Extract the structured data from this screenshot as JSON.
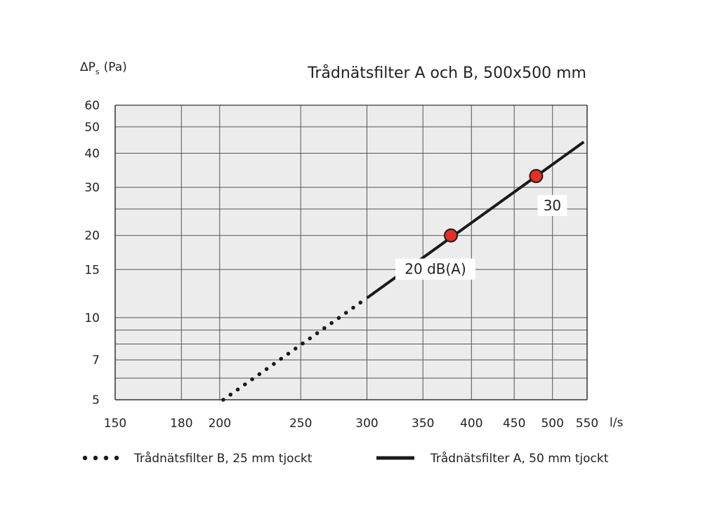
{
  "chart_data": {
    "type": "line",
    "title": "Trådnätsfilter A och B, 500x500 mm",
    "ylabel": {
      "main": "ΔP",
      "sub": "s",
      "unit": "(Pa)"
    },
    "xlabel": "l/s",
    "x_scale": "log",
    "y_scale": "log",
    "xlim": [
      150,
      550
    ],
    "ylim": [
      5,
      60
    ],
    "x_ticks": [
      150,
      180,
      200,
      250,
      300,
      350,
      400,
      450,
      500,
      550
    ],
    "x_gridlines": [
      150,
      180,
      200,
      250,
      300,
      350,
      400,
      450,
      500,
      550
    ],
    "y_ticks": [
      5,
      7,
      10,
      15,
      20,
      30,
      40,
      50,
      60
    ],
    "y_gridlines": [
      5,
      6,
      7,
      8,
      9,
      10,
      15,
      20,
      25,
      30,
      40,
      50,
      60
    ],
    "grid": true,
    "plot_background": "#ececec",
    "series": [
      {
        "name": "Trådnätsfilter B, 25 mm tjockt",
        "style": "dotted",
        "color": "#1a1a1a",
        "x": [
          202,
          300
        ],
        "y": [
          5,
          11.8
        ]
      },
      {
        "name": "Trådnätsfilter A, 50 mm tjockt",
        "style": "solid",
        "color": "#1a1a1a",
        "x": [
          300,
          545
        ],
        "y": [
          11.8,
          44
        ]
      }
    ],
    "markers": [
      {
        "x": 378,
        "y": 20,
        "label": "20 dB(A)",
        "color": "#e53027"
      },
      {
        "x": 478,
        "y": 33,
        "label": "30",
        "color": "#e53027"
      }
    ],
    "legend_placement": "bottom"
  }
}
